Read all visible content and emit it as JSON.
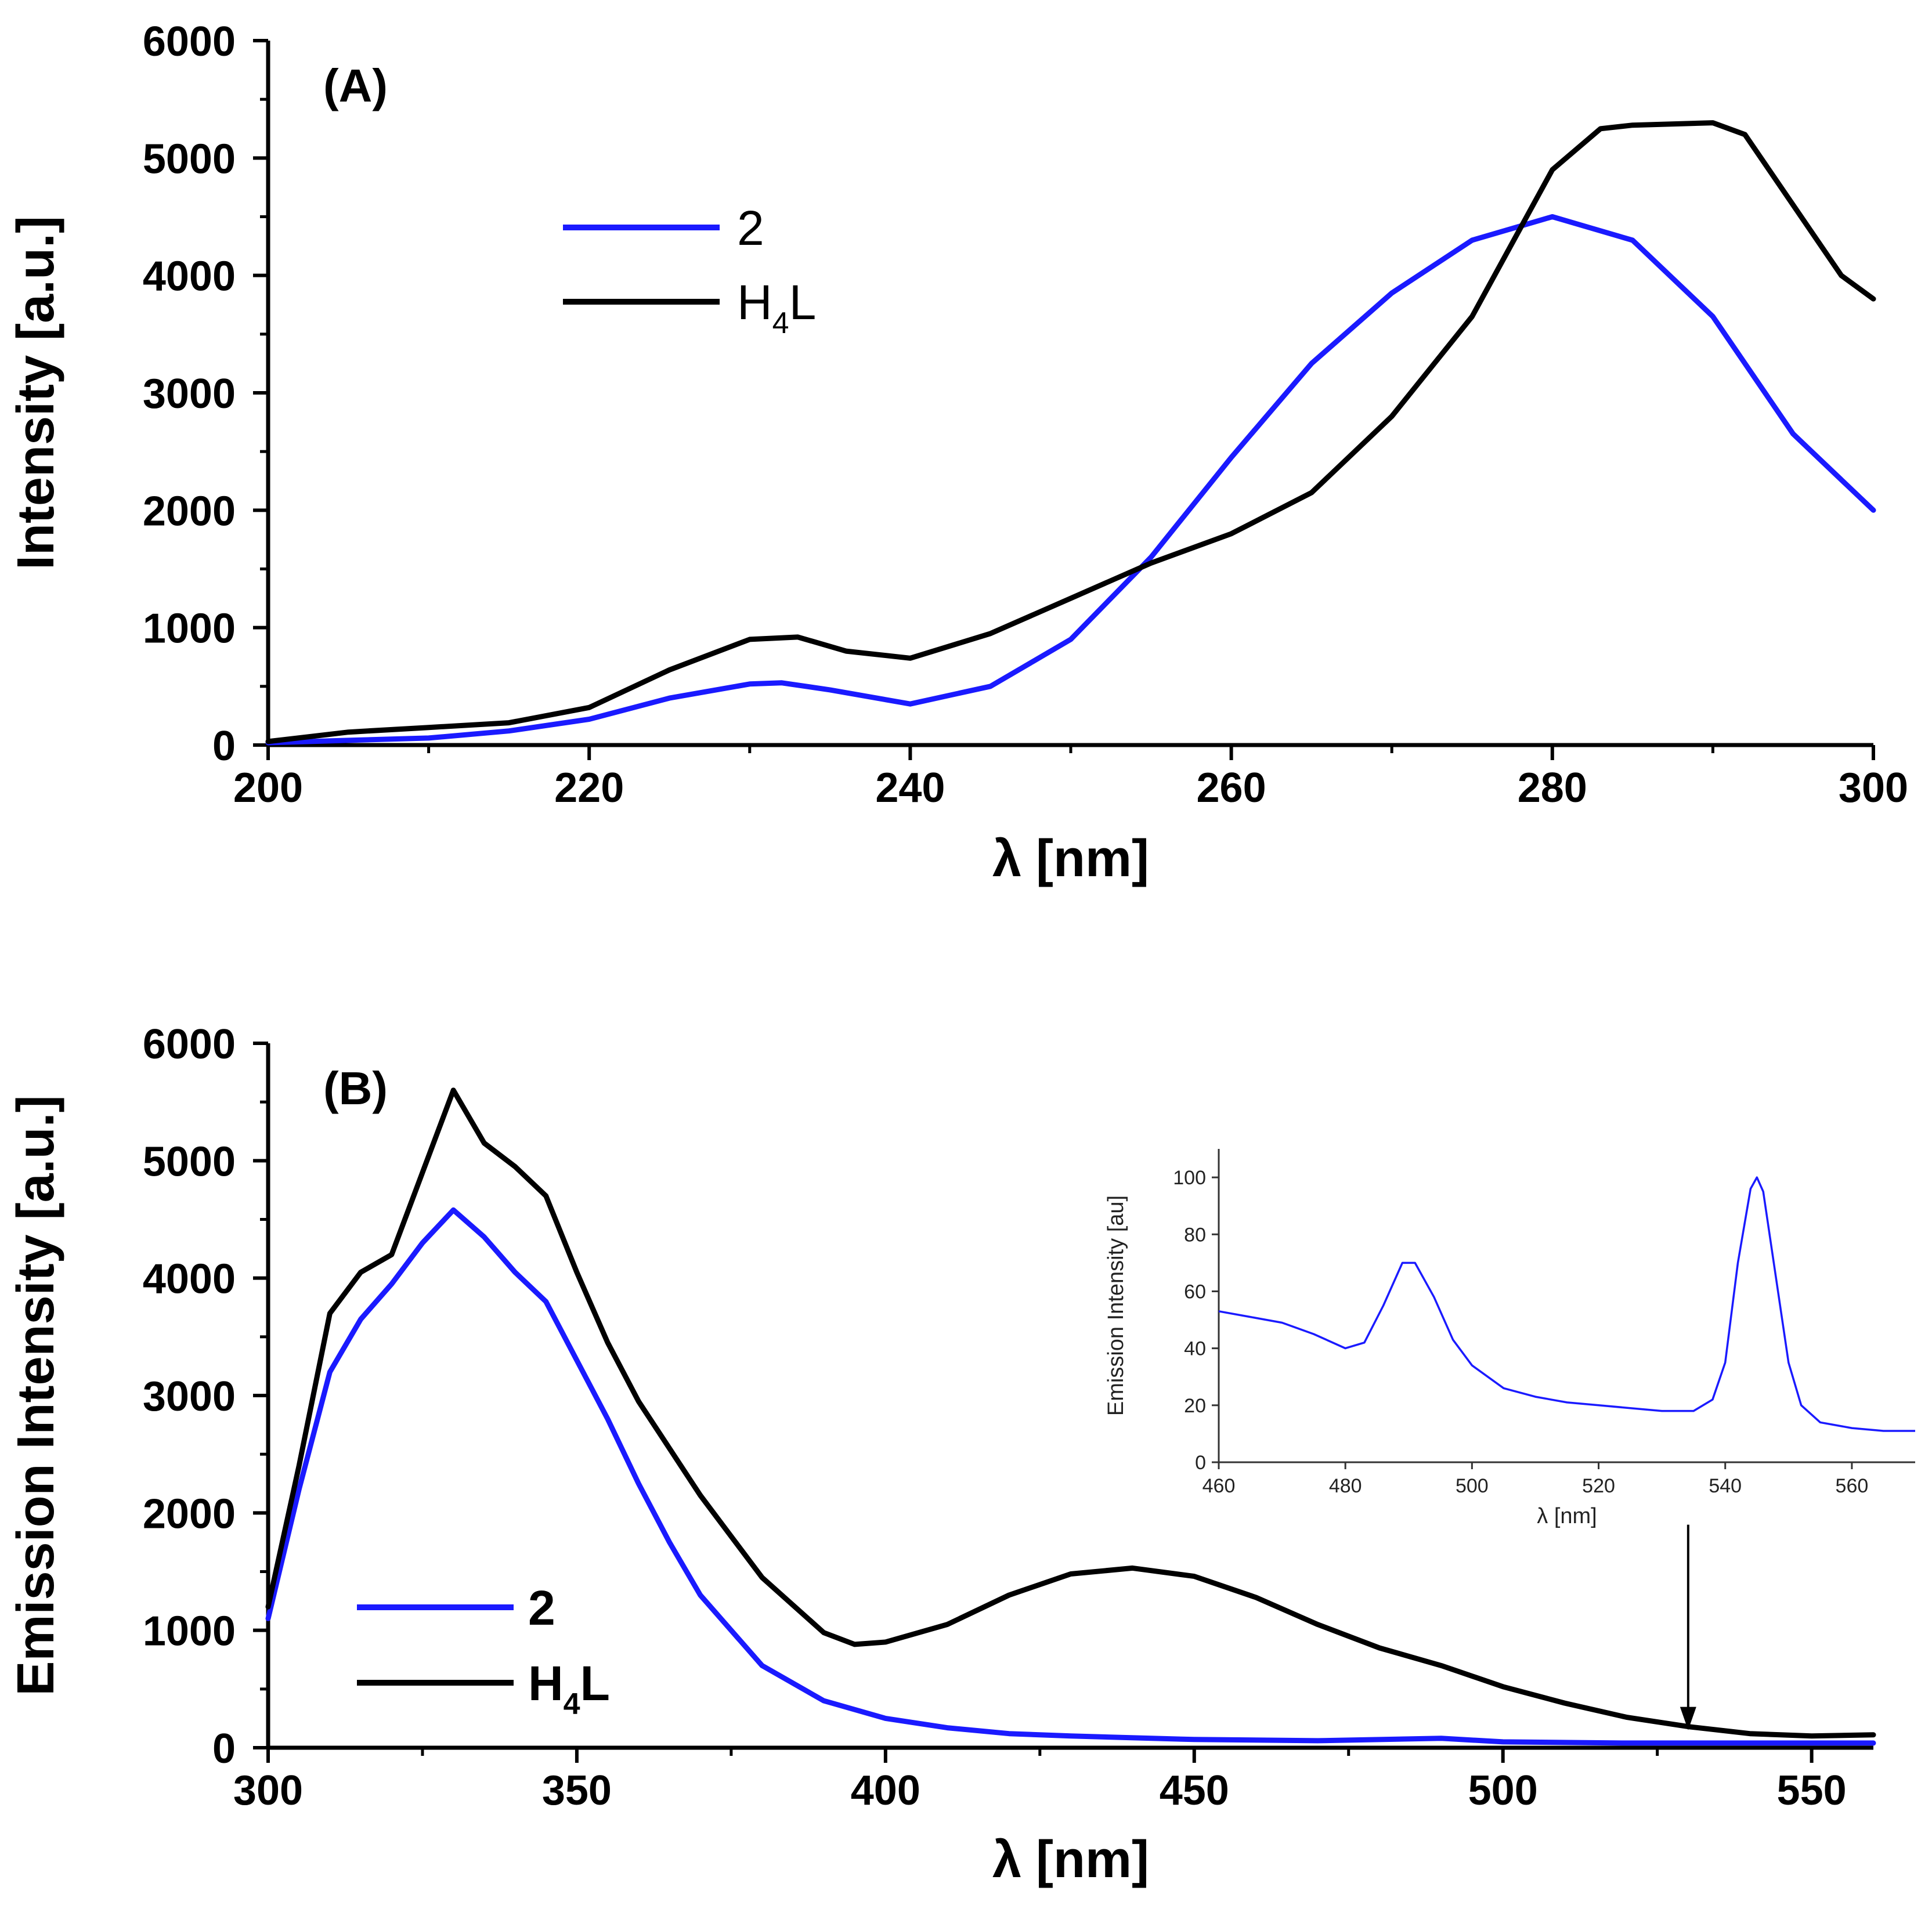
{
  "colors": {
    "series_2": "#1a1aff",
    "series_H4L": "#000000",
    "axis": "#000000",
    "background": "#ffffff"
  },
  "chart_data": [
    {
      "id": "A",
      "type": "line",
      "panel_label": "(A)",
      "title": "",
      "xlabel": "λ [nm]",
      "ylabel": "Intensity [a.u.]",
      "xlim": [
        200,
        300
      ],
      "ylim": [
        0,
        6000
      ],
      "xticks": [
        200,
        220,
        240,
        260,
        280,
        300
      ],
      "yticks": [
        0,
        1000,
        2000,
        3000,
        4000,
        5000,
        6000
      ],
      "legend_position": "upper-left",
      "legend": [
        {
          "label": "2",
          "sub": "",
          "after": "",
          "color": "#1a1aff"
        },
        {
          "label": "H",
          "sub": "4",
          "after": "L",
          "color": "#000000"
        }
      ],
      "series": [
        {
          "name": "2",
          "color": "#1a1aff",
          "x": [
            200,
            205,
            210,
            215,
            220,
            225,
            230,
            232,
            235,
            240,
            245,
            250,
            255,
            260,
            265,
            270,
            275,
            280,
            285,
            290,
            295,
            300
          ],
          "y": [
            20,
            40,
            60,
            120,
            220,
            400,
            520,
            530,
            470,
            350,
            500,
            900,
            1600,
            2450,
            3250,
            3850,
            4300,
            4500,
            4300,
            3650,
            2650,
            2000
          ]
        },
        {
          "name": "H4L",
          "color": "#000000",
          "x": [
            200,
            205,
            210,
            215,
            220,
            225,
            230,
            233,
            236,
            240,
            245,
            250,
            255,
            260,
            265,
            270,
            275,
            278,
            280,
            283,
            285,
            290,
            292,
            295,
            298,
            300
          ],
          "y": [
            30,
            110,
            150,
            190,
            320,
            640,
            900,
            920,
            800,
            740,
            950,
            1250,
            1550,
            1800,
            2150,
            2800,
            3650,
            4400,
            4900,
            5250,
            5280,
            5300,
            5200,
            4600,
            4000,
            3800
          ]
        }
      ]
    },
    {
      "id": "B",
      "type": "line",
      "panel_label": "(B)",
      "title": "",
      "xlabel": "λ [nm]",
      "ylabel": "Emission Intensity [a.u.]",
      "xlim": [
        300,
        560
      ],
      "ylim": [
        0,
        6000
      ],
      "xticks": [
        300,
        350,
        400,
        450,
        500,
        550
      ],
      "yticks": [
        0,
        1000,
        2000,
        3000,
        4000,
        5000,
        6000
      ],
      "legend_position": "lower-left",
      "legend": [
        {
          "label": "2",
          "sub": "",
          "after": "",
          "color": "#1a1aff"
        },
        {
          "label": "H",
          "sub": "4",
          "after": "L",
          "color": "#000000"
        }
      ],
      "annotation": {
        "type": "arrow",
        "x": 530,
        "y_from": 1900,
        "y_to": 150
      },
      "series": [
        {
          "name": "2",
          "color": "#1a1aff",
          "x": [
            300,
            305,
            310,
            315,
            320,
            325,
            330,
            335,
            340,
            345,
            350,
            355,
            360,
            365,
            370,
            380,
            390,
            400,
            410,
            420,
            430,
            450,
            470,
            490,
            500,
            520,
            540,
            560
          ],
          "y": [
            1100,
            2200,
            3200,
            3650,
            3950,
            4300,
            4580,
            4350,
            4050,
            3800,
            3300,
            2800,
            2250,
            1750,
            1300,
            700,
            400,
            250,
            170,
            120,
            100,
            70,
            60,
            80,
            50,
            40,
            40,
            40
          ]
        },
        {
          "name": "H4L",
          "color": "#000000",
          "x": [
            300,
            305,
            310,
            315,
            320,
            325,
            330,
            335,
            340,
            345,
            350,
            355,
            360,
            370,
            380,
            390,
            395,
            400,
            410,
            420,
            430,
            440,
            450,
            460,
            470,
            480,
            490,
            500,
            510,
            520,
            530,
            540,
            550,
            560
          ],
          "y": [
            1200,
            2400,
            3700,
            4050,
            4200,
            4900,
            5600,
            5150,
            4950,
            4700,
            4050,
            3450,
            2950,
            2150,
            1450,
            980,
            880,
            900,
            1050,
            1300,
            1480,
            1530,
            1460,
            1280,
            1050,
            850,
            700,
            520,
            380,
            260,
            180,
            120,
            100,
            110
          ]
        }
      ],
      "inset": {
        "type": "line",
        "xlabel": "λ [nm]",
        "ylabel": "Emission Intensity [au]",
        "xlim": [
          460,
          570
        ],
        "ylim": [
          0,
          110
        ],
        "xticks": [
          460,
          480,
          500,
          520,
          540,
          560
        ],
        "yticks": [
          0,
          20,
          40,
          60,
          80,
          100
        ],
        "series": [
          {
            "name": "2",
            "color": "#1a1aff",
            "x": [
              460,
              465,
              470,
              475,
              480,
              483,
              486,
              489,
              491,
              494,
              497,
              500,
              505,
              510,
              515,
              520,
              525,
              530,
              535,
              538,
              540,
              542,
              544,
              545,
              546,
              548,
              550,
              552,
              555,
              560,
              565,
              570
            ],
            "y": [
              53,
              51,
              49,
              45,
              40,
              42,
              55,
              70,
              70,
              58,
              43,
              34,
              26,
              23,
              21,
              20,
              19,
              18,
              18,
              22,
              35,
              70,
              96,
              100,
              95,
              65,
              35,
              20,
              14,
              12,
              11,
              11
            ]
          }
        ]
      }
    }
  ]
}
